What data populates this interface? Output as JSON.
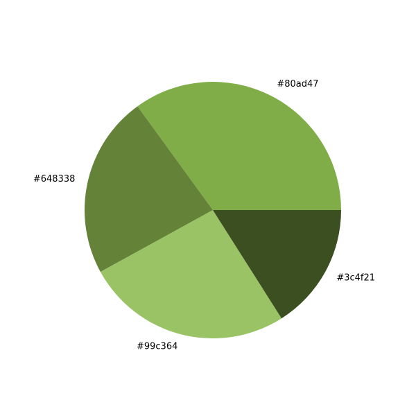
{
  "chart_data": {
    "type": "pie",
    "start_angle_deg": 0,
    "direction": "counterclockwise",
    "slices": [
      {
        "label": "#80ad47",
        "value": 0.35,
        "color": "#80ad47"
      },
      {
        "label": "#648338",
        "value": 0.23,
        "color": "#648338"
      },
      {
        "label": "#99c364",
        "value": 0.26,
        "color": "#99c364"
      },
      {
        "label": "#3c4f21",
        "value": 0.16,
        "color": "#3c4f21"
      }
    ]
  }
}
